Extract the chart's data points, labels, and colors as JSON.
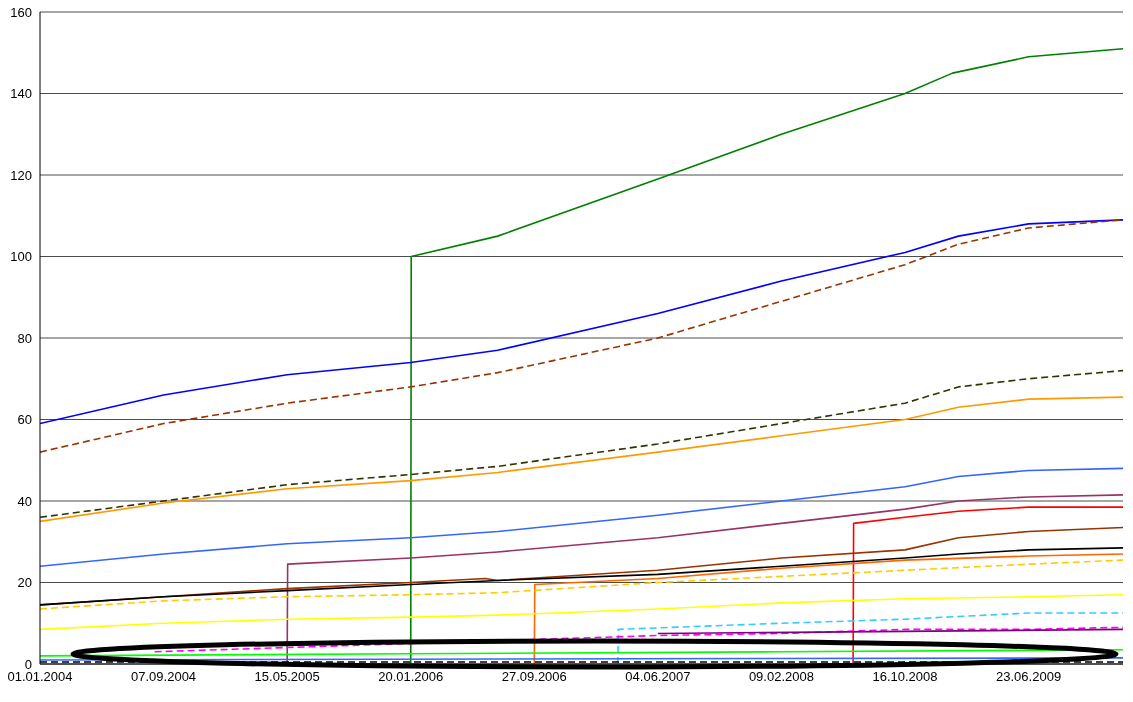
{
  "chart_data": {
    "type": "line",
    "xlim": [
      "2004-01-01",
      "2009-12-31"
    ],
    "xticks": [
      {
        "value": "2004-01-01",
        "label": "01.01.2004"
      },
      {
        "value": "2004-09-07",
        "label": "07.09.2004"
      },
      {
        "value": "2005-05-15",
        "label": "15.05.2005"
      },
      {
        "value": "2006-01-20",
        "label": "20.01.2006"
      },
      {
        "value": "2006-09-27",
        "label": "27.09.2006"
      },
      {
        "value": "2007-06-04",
        "label": "04.06.2007"
      },
      {
        "value": "2008-02-09",
        "label": "09.02.2008"
      },
      {
        "value": "2008-10-16",
        "label": "16.10.2008"
      },
      {
        "value": "2009-06-23",
        "label": "23.06.2009"
      }
    ],
    "ylim": [
      0,
      160
    ],
    "yticks": [
      0,
      20,
      40,
      60,
      80,
      100,
      120,
      140,
      160
    ],
    "grid": "y",
    "legend": false,
    "series": [
      {
        "color": "#008000",
        "line_style": "solid",
        "x": [
          "2006-01-20",
          "2006-01-21",
          "2006-07-15",
          "2007-06-04",
          "2008-02-09",
          "2008-10-16",
          "2009-01-20",
          "2009-06-23",
          "2009-12-31"
        ],
        "values": [
          0,
          100,
          105,
          119,
          130,
          140,
          145,
          149,
          151
        ]
      },
      {
        "color": "#0000ff",
        "line_style": "solid",
        "x": [
          "2004-01-01",
          "2004-09-07",
          "2005-05-15",
          "2006-01-20",
          "2006-07-15",
          "2007-06-04",
          "2008-02-09",
          "2008-10-16",
          "2009-02-01",
          "2009-06-23",
          "2009-12-31"
        ],
        "values": [
          59,
          66,
          71,
          74,
          77,
          86,
          94,
          101,
          105,
          108,
          109
        ]
      },
      {
        "color": "#993300",
        "line_style": "dashed",
        "x": [
          "2004-01-01",
          "2004-09-07",
          "2005-05-15",
          "2006-01-20",
          "2006-07-15",
          "2007-06-04",
          "2008-02-09",
          "2008-10-16",
          "2009-02-01",
          "2009-06-23",
          "2009-12-31"
        ],
        "values": [
          52,
          59,
          64,
          68,
          71.5,
          80,
          89,
          98,
          103,
          107,
          109
        ]
      },
      {
        "color": "#333300",
        "line_style": "dashed",
        "x": [
          "2004-01-01",
          "2004-09-07",
          "2005-05-15",
          "2006-01-20",
          "2006-07-15",
          "2007-06-04",
          "2008-02-09",
          "2008-10-16",
          "2009-02-01",
          "2009-06-23",
          "2009-12-31"
        ],
        "values": [
          36,
          40,
          44,
          46.5,
          48.5,
          54,
          59,
          64,
          68,
          70,
          72
        ]
      },
      {
        "color": "#ff9900",
        "line_style": "solid",
        "x": [
          "2004-01-01",
          "2004-09-07",
          "2005-05-15",
          "2006-01-20",
          "2006-07-15",
          "2007-06-04",
          "2008-02-09",
          "2008-10-16",
          "2009-02-01",
          "2009-06-23",
          "2009-12-31"
        ],
        "values": [
          35,
          39.5,
          43,
          45,
          47,
          52,
          56,
          60,
          63,
          65,
          65.5
        ]
      },
      {
        "color": "#3366ff",
        "line_style": "solid",
        "x": [
          "2004-01-01",
          "2004-09-07",
          "2005-05-15",
          "2006-01-20",
          "2006-07-15",
          "2007-06-04",
          "2008-02-09",
          "2008-10-16",
          "2009-02-01",
          "2009-06-23",
          "2009-12-31"
        ],
        "values": [
          24,
          27,
          29.5,
          31,
          32.5,
          36.5,
          40,
          43.5,
          46,
          47.5,
          48
        ]
      },
      {
        "color": "#993366",
        "line_style": "solid",
        "x": [
          "2005-05-15",
          "2005-05-16",
          "2006-01-20",
          "2006-07-15",
          "2007-06-04",
          "2008-02-09",
          "2008-10-16",
          "2009-02-01",
          "2009-06-23",
          "2009-12-31"
        ],
        "values": [
          0,
          24.5,
          26,
          27.5,
          31,
          34.5,
          38,
          40,
          41,
          41.5
        ]
      },
      {
        "color": "#ff0000",
        "line_style": "solid",
        "x": [
          "2008-07-03",
          "2008-07-04",
          "2008-10-16",
          "2009-02-01",
          "2009-06-23",
          "2009-12-31"
        ],
        "values": [
          0,
          34.5,
          36,
          37.5,
          38.5,
          38.5
        ]
      },
      {
        "color": "#993300",
        "line_style": "solid",
        "x": [
          "2004-01-01",
          "2004-09-07",
          "2005-05-15",
          "2006-01-20",
          "2006-06-20",
          "2006-07-15",
          "2007-06-04",
          "2008-02-09",
          "2008-10-16",
          "2009-02-01",
          "2009-06-23",
          "2009-12-31"
        ],
        "values": [
          14.5,
          16.5,
          18.5,
          20,
          21,
          20.5,
          23,
          26,
          28,
          31,
          32.5,
          33.5
        ]
      },
      {
        "color": "#000000",
        "line_style": "solid",
        "x": [
          "2004-01-01",
          "2004-09-07",
          "2005-05-15",
          "2006-01-20",
          "2006-07-15",
          "2007-06-04",
          "2008-02-09",
          "2008-10-16",
          "2009-02-01",
          "2009-06-23",
          "2009-12-31"
        ],
        "values": [
          14.5,
          16.5,
          18,
          19.5,
          20.5,
          22,
          24,
          26,
          27,
          28,
          28.5
        ]
      },
      {
        "color": "#ff6600",
        "line_style": "solid",
        "x": [
          "2006-09-27",
          "2006-09-28",
          "2007-06-04",
          "2008-02-09",
          "2008-10-16",
          "2009-06-23",
          "2009-12-31"
        ],
        "values": [
          0,
          19.5,
          21,
          23.5,
          25.5,
          26.5,
          27
        ]
      },
      {
        "color": "#ffcc00",
        "line_style": "dashed",
        "x": [
          "2004-01-01",
          "2004-09-07",
          "2005-05-15",
          "2006-01-20",
          "2006-07-15",
          "2007-06-04",
          "2008-02-09",
          "2008-10-16",
          "2009-06-23",
          "2009-12-31"
        ],
        "values": [
          13.5,
          15.5,
          16.5,
          17,
          17.5,
          20,
          21.5,
          23,
          24.5,
          25.5
        ]
      },
      {
        "color": "#ffff00",
        "line_style": "solid",
        "x": [
          "2004-01-01",
          "2004-09-07",
          "2005-05-15",
          "2006-01-20",
          "2006-07-15",
          "2007-06-04",
          "2008-02-09",
          "2008-10-16",
          "2009-06-23",
          "2009-12-31"
        ],
        "values": [
          8.5,
          10,
          11,
          11.5,
          12,
          13.5,
          15,
          16,
          16.5,
          17
        ]
      },
      {
        "color": "#33ccff",
        "line_style": "dashed",
        "x": [
          "2007-03-15",
          "2007-03-16",
          "2008-02-09",
          "2008-10-16",
          "2009-06-23",
          "2009-12-31"
        ],
        "values": [
          0,
          8.5,
          10,
          11,
          12.5,
          12.5
        ]
      },
      {
        "color": "#ff00ff",
        "line_style": "dashed",
        "x": [
          "2004-08-20",
          "2006-09-27",
          "2007-06-04",
          "2008-02-09",
          "2008-10-16",
          "2009-06-23",
          "2009-12-31"
        ],
        "values": [
          3,
          6,
          7,
          7.5,
          8.5,
          8.5,
          9
        ]
      },
      {
        "color": "#800080",
        "line_style": "solid",
        "x": [
          "2007-06-04",
          "2008-10-16",
          "2009-12-31"
        ],
        "values": [
          7.5,
          8,
          8.5
        ]
      },
      {
        "color": "#00ff00",
        "line_style": "solid",
        "x": [
          "2004-01-01",
          "2006-01-20",
          "2008-02-09",
          "2009-12-31"
        ],
        "values": [
          2,
          2.5,
          3,
          3.5
        ]
      },
      {
        "color": "#3366ff",
        "line_style": "solid",
        "x": [
          "2004-01-01",
          "2009-12-31"
        ],
        "values": [
          1,
          1.5
        ]
      },
      {
        "color": "#000000",
        "line_style": "dashed",
        "x": [
          "2004-01-01",
          "2009-12-31"
        ],
        "values": [
          0.5,
          0.5
        ]
      }
    ]
  }
}
